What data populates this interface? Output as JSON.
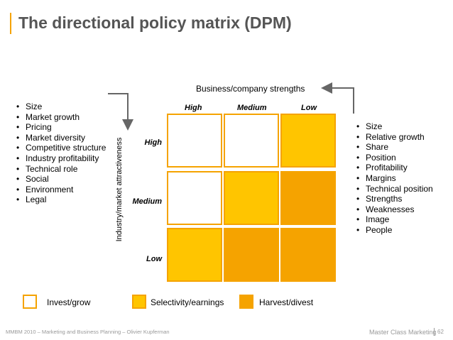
{
  "title": "The directional policy matrix (DPM)",
  "x_axis_label": "Business/company strengths",
  "y_axis_label": "Industry/market attractiveness",
  "columns": [
    "High",
    "Medium",
    "Low"
  ],
  "rows": [
    "High",
    "Medium",
    "Low"
  ],
  "market_factors": [
    "Size",
    "Market growth",
    "Pricing",
    "Market diversity",
    "Competitive structure",
    "Industry profitability",
    "Technical role",
    "Social",
    "Environment",
    "Legal"
  ],
  "company_factors": [
    "Size",
    "Relative growth",
    "Share",
    "Position",
    "Profitability",
    "Margins",
    "Technical position",
    "Strengths",
    "Weaknesses",
    "Image",
    "People"
  ],
  "matrix": [
    [
      "invest",
      "invest",
      "selectivity"
    ],
    [
      "invest",
      "selectivity",
      "harvest"
    ],
    [
      "selectivity",
      "harvest",
      "harvest"
    ]
  ],
  "colors": {
    "invest": "#ffffff",
    "selectivity": "#ffc500",
    "harvest": "#f5a300",
    "accent": "#f5a300",
    "arrow": "#666666"
  },
  "legend": {
    "invest": "Invest/grow",
    "selectivity": "Selectivity/earnings",
    "harvest": "Harvest/divest"
  },
  "footer": {
    "left": "MMBM 2010 – Marketing and Business Planning – Olivier Kupferman",
    "right": "Master Class Marketing",
    "page": "62"
  }
}
